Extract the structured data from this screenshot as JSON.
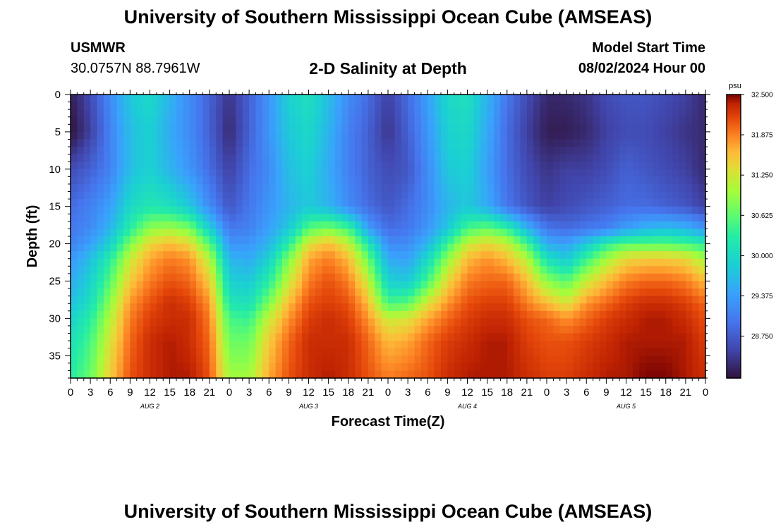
{
  "header": {
    "title": "University of Southern Mississippi Ocean Cube (AMSEAS)",
    "station_name": "USMWR",
    "station_coords": "30.0757N  88.7961W",
    "subtitle": "2-D Salinity at Depth",
    "model_start_label": "Model Start Time",
    "model_start_value": "08/02/2024 Hour 00"
  },
  "footer": {
    "title": "University of Southern Mississippi Ocean Cube (AMSEAS)"
  },
  "chart_data": {
    "type": "heatmap",
    "title": "2-D Salinity at Depth",
    "xlabel": "Forecast Time(Z)",
    "ylabel": "Depth (ft)",
    "xlim": [
      0,
      96
    ],
    "ylim": [
      0,
      38
    ],
    "y_inverted": true,
    "x_tick_values": [
      0,
      3,
      6,
      9,
      12,
      15,
      18,
      21,
      24,
      27,
      30,
      33,
      36,
      39,
      42,
      45,
      48,
      51,
      54,
      57,
      60,
      63,
      66,
      69,
      72,
      75,
      78,
      81,
      84,
      87,
      90,
      93,
      96
    ],
    "x_tick_labels": [
      "0",
      "3",
      "6",
      "9",
      "12",
      "15",
      "18",
      "21",
      "0",
      "3",
      "6",
      "9",
      "12",
      "15",
      "18",
      "21",
      "0",
      "3",
      "6",
      "9",
      "12",
      "15",
      "18",
      "21",
      "0",
      "3",
      "6",
      "9",
      "12",
      "15",
      "18",
      "21",
      "0"
    ],
    "y_tick_values": [
      0,
      5,
      10,
      15,
      20,
      25,
      30,
      35
    ],
    "y_tick_labels": [
      "0",
      "5",
      "10",
      "15",
      "20",
      "25",
      "30",
      "35"
    ],
    "day_labels": [
      {
        "label": "AUG 2",
        "x": 12
      },
      {
        "label": "AUG 3",
        "x": 36
      },
      {
        "label": "AUG 4",
        "x": 60
      },
      {
        "label": "AUG 5",
        "x": 84
      }
    ],
    "colorbar": {
      "unit": "psu",
      "min": 28.1,
      "max": 32.5,
      "ticks": [
        28.75,
        29.375,
        30.0,
        30.625,
        31.25,
        31.875,
        32.5
      ],
      "tick_labels": [
        "28.750",
        "29.375",
        "30.000",
        "30.625",
        "31.250",
        "31.875",
        "32.500"
      ]
    },
    "depth_levels_ft": [
      0,
      5,
      10,
      15,
      18,
      20,
      22,
      25,
      28,
      30,
      33,
      38
    ],
    "times_h": [
      0,
      3,
      6,
      9,
      12,
      15,
      18,
      21,
      24,
      27,
      30,
      33,
      36,
      39,
      42,
      45,
      48,
      51,
      54,
      57,
      60,
      63,
      66,
      69,
      72,
      75,
      78,
      81,
      84,
      87,
      90,
      93,
      96
    ],
    "salinity_psu": [
      [
        28.2,
        28.6,
        29.2,
        29.8,
        30.0,
        29.6,
        29.2,
        28.8,
        28.4,
        28.8,
        29.3,
        29.9,
        30.1,
        29.7,
        29.2,
        28.9,
        28.5,
        28.9,
        29.4,
        30.0,
        30.1,
        29.6,
        29.0,
        28.6,
        28.3,
        28.3,
        28.4,
        28.6,
        28.7,
        28.7,
        28.6,
        28.5,
        28.3
      ],
      [
        28.1,
        28.5,
        29.1,
        29.7,
        29.9,
        29.5,
        29.2,
        28.8,
        28.3,
        28.8,
        29.3,
        29.8,
        30.0,
        29.6,
        29.1,
        28.8,
        28.4,
        28.8,
        29.3,
        29.9,
        30.0,
        29.5,
        28.9,
        28.5,
        28.2,
        28.2,
        28.3,
        28.5,
        28.6,
        28.6,
        28.5,
        28.4,
        28.3
      ],
      [
        28.6,
        28.8,
        29.1,
        29.7,
        29.9,
        29.6,
        29.3,
        28.9,
        28.5,
        28.9,
        29.2,
        29.7,
        29.9,
        29.5,
        29.1,
        28.8,
        28.6,
        28.7,
        29.2,
        29.8,
        29.9,
        29.4,
        28.9,
        28.6,
        28.4,
        28.5,
        28.5,
        28.6,
        28.8,
        28.7,
        28.6,
        28.5,
        28.3
      ],
      [
        28.9,
        29.1,
        29.4,
        30.0,
        30.2,
        30.1,
        29.8,
        29.2,
        28.7,
        29.0,
        29.3,
        29.6,
        29.8,
        29.6,
        29.2,
        28.9,
        28.7,
        28.9,
        29.2,
        29.6,
        29.8,
        29.5,
        29.0,
        28.7,
        28.5,
        28.6,
        28.7,
        28.8,
        28.9,
        28.9,
        28.8,
        28.7,
        28.5
      ],
      [
        29.0,
        29.2,
        29.6,
        30.3,
        30.9,
        31.0,
        30.8,
        29.9,
        29.0,
        29.1,
        29.4,
        29.8,
        30.6,
        30.8,
        30.5,
        29.4,
        28.9,
        29.0,
        29.3,
        29.8,
        30.5,
        30.7,
        30.4,
        29.6,
        29.0,
        28.9,
        29.0,
        29.1,
        29.4,
        29.6,
        29.7,
        29.6,
        29.3
      ],
      [
        29.1,
        29.4,
        29.9,
        30.8,
        31.4,
        31.6,
        31.4,
        30.6,
        29.3,
        29.3,
        29.6,
        30.3,
        31.3,
        31.6,
        31.2,
        30.2,
        29.2,
        29.2,
        29.6,
        30.4,
        31.2,
        31.4,
        31.2,
        30.5,
        29.5,
        29.4,
        29.8,
        30.3,
        30.6,
        30.6,
        30.6,
        30.5,
        30.3
      ],
      [
        29.3,
        29.7,
        30.3,
        31.2,
        31.7,
        31.9,
        31.8,
        31.1,
        29.6,
        29.5,
        29.9,
        30.8,
        31.7,
        31.9,
        31.6,
        30.7,
        29.5,
        29.4,
        30.0,
        30.9,
        31.6,
        31.8,
        31.6,
        31.1,
        30.1,
        29.8,
        30.4,
        31.0,
        31.4,
        31.5,
        31.5,
        31.4,
        31.0
      ],
      [
        29.5,
        29.9,
        30.6,
        31.5,
        31.9,
        32.1,
        32.0,
        31.5,
        29.9,
        29.8,
        30.3,
        31.2,
        31.9,
        32.1,
        31.9,
        31.2,
        29.9,
        29.8,
        30.5,
        31.4,
        31.9,
        32.0,
        32.0,
        31.6,
        30.9,
        30.6,
        31.2,
        31.6,
        31.9,
        32.0,
        32.0,
        31.9,
        31.6
      ],
      [
        29.7,
        30.1,
        30.9,
        31.8,
        32.1,
        32.3,
        32.2,
        31.8,
        30.2,
        30.1,
        30.8,
        31.6,
        32.1,
        32.2,
        32.1,
        31.6,
        30.5,
        30.6,
        31.3,
        31.8,
        32.1,
        32.2,
        32.2,
        31.9,
        31.6,
        31.3,
        31.8,
        32.0,
        32.2,
        32.3,
        32.3,
        32.2,
        32.0
      ],
      [
        29.9,
        30.3,
        31.1,
        31.9,
        32.2,
        32.3,
        32.3,
        31.9,
        30.5,
        30.4,
        31.2,
        31.8,
        32.2,
        32.3,
        32.2,
        31.8,
        31.2,
        31.3,
        31.7,
        32.0,
        32.2,
        32.3,
        32.3,
        32.1,
        32.0,
        31.8,
        32.0,
        32.2,
        32.3,
        32.4,
        32.4,
        32.3,
        32.1
      ],
      [
        30.1,
        30.5,
        31.3,
        32.0,
        32.3,
        32.4,
        32.3,
        32.0,
        30.7,
        30.7,
        31.5,
        32.0,
        32.3,
        32.3,
        32.3,
        32.0,
        31.6,
        31.7,
        32.0,
        32.2,
        32.3,
        32.4,
        32.4,
        32.2,
        32.1,
        32.1,
        32.2,
        32.3,
        32.4,
        32.4,
        32.4,
        32.4,
        32.2
      ],
      [
        30.3,
        30.7,
        31.5,
        32.1,
        32.3,
        32.4,
        32.4,
        32.1,
        31.0,
        31.0,
        31.7,
        32.1,
        32.3,
        32.4,
        32.3,
        32.1,
        31.9,
        32.0,
        32.1,
        32.3,
        32.4,
        32.4,
        32.4,
        32.3,
        32.2,
        32.2,
        32.3,
        32.4,
        32.4,
        32.5,
        32.5,
        32.4,
        32.3
      ]
    ]
  }
}
